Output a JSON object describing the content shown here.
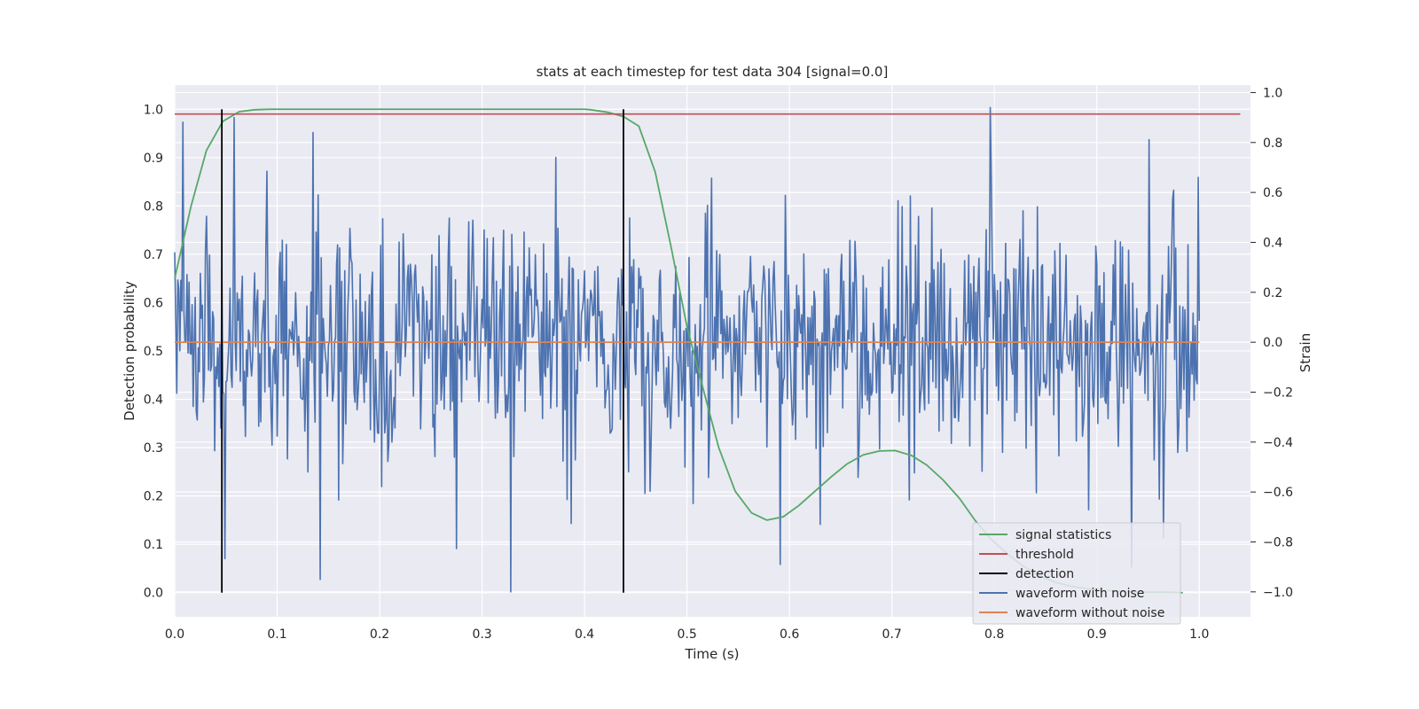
{
  "chart_data": {
    "type": "line",
    "title": "stats at each timestep for test data 304 [signal=0.0]",
    "xlabel": "Time (s)",
    "ylabel": "Detection probability",
    "y2label": "Strain",
    "xlim": [
      0.0,
      1.05
    ],
    "ylim": [
      -0.05,
      1.05
    ],
    "y2lim": [
      -1.1,
      1.03
    ],
    "x_ticks": [
      "0.0",
      "0.1",
      "0.2",
      "0.3",
      "0.4",
      "0.5",
      "0.6",
      "0.7",
      "0.8",
      "0.9",
      "1.0"
    ],
    "y_ticks": [
      "0.0",
      "0.1",
      "0.2",
      "0.3",
      "0.4",
      "0.5",
      "0.6",
      "0.7",
      "0.8",
      "0.9",
      "1.0"
    ],
    "y2_ticks": [
      "−1.0",
      "−0.8",
      "−0.6",
      "−0.4",
      "−0.2",
      "0.0",
      "0.2",
      "0.4",
      "0.6",
      "0.8",
      "1.0"
    ],
    "grid": true,
    "legend_position": "lower-right",
    "series": [
      {
        "name": "signal statistics",
        "axis": "left",
        "color": "#55a868",
        "x": [
          0.0,
          0.016,
          0.031,
          0.047,
          0.063,
          0.078,
          0.094,
          0.109,
          0.125,
          0.141,
          0.2,
          0.3,
          0.4,
          0.406,
          0.422,
          0.438,
          0.453,
          0.469,
          0.484,
          0.5,
          0.516,
          0.531,
          0.547,
          0.563,
          0.578,
          0.594,
          0.609,
          0.625,
          0.641,
          0.656,
          0.672,
          0.688,
          0.703,
          0.719,
          0.734,
          0.75,
          0.766,
          0.781,
          0.797,
          0.813,
          0.828,
          0.844,
          0.859,
          0.875,
          0.891,
          0.906,
          0.922,
          0.938,
          0.953,
          0.969,
          0.984
        ],
        "y": [
          0.65,
          0.8,
          0.915,
          0.975,
          0.995,
          0.999,
          1.0,
          1.0,
          1.0,
          1.0,
          1.0,
          1.0,
          1.0,
          0.999,
          0.994,
          0.985,
          0.965,
          0.87,
          0.72,
          0.55,
          0.42,
          0.3,
          0.21,
          0.165,
          0.15,
          0.157,
          0.18,
          0.21,
          0.24,
          0.266,
          0.285,
          0.293,
          0.294,
          0.284,
          0.264,
          0.233,
          0.195,
          0.15,
          0.11,
          0.08,
          0.055,
          0.035,
          0.022,
          0.013,
          0.008,
          0.005,
          0.003,
          0.002,
          0.001,
          0.001,
          0.0
        ]
      },
      {
        "name": "threshold",
        "axis": "left",
        "color": "#c44e52",
        "x": [
          0.0,
          1.04
        ],
        "y": [
          0.99,
          0.99
        ]
      },
      {
        "name": "detection",
        "axis": "left",
        "color": "#000000",
        "segments": [
          {
            "x": 0.046,
            "y": [
              0.0,
              1.0
            ]
          },
          {
            "x": 0.438,
            "y": [
              0.0,
              1.0
            ]
          }
        ]
      },
      {
        "name": "waveform with noise",
        "axis": "right",
        "color": "#4c72b0",
        "x_range": [
          0.0,
          1.0
        ],
        "points": 1001,
        "sigma": 0.24,
        "y_range": [
          -1.0,
          0.94
        ],
        "notable_peaks": [
          {
            "x": 0.796,
            "y": 0.94
          },
          {
            "x": 0.058,
            "y": 0.9
          },
          {
            "x": 0.135,
            "y": 0.84
          },
          {
            "x": 0.372,
            "y": 0.74
          },
          {
            "x": 0.999,
            "y": 0.66
          }
        ],
        "notable_troughs": [
          {
            "x": 0.328,
            "y": -1.0
          },
          {
            "x": 0.142,
            "y": -0.95
          },
          {
            "x": 0.591,
            "y": -0.89
          },
          {
            "x": 0.934,
            "y": -0.9
          }
        ]
      },
      {
        "name": "waveform without noise",
        "axis": "right",
        "color": "#dd8452",
        "x": [
          0.0,
          1.0
        ],
        "y": [
          0.0,
          0.0
        ]
      }
    ]
  }
}
